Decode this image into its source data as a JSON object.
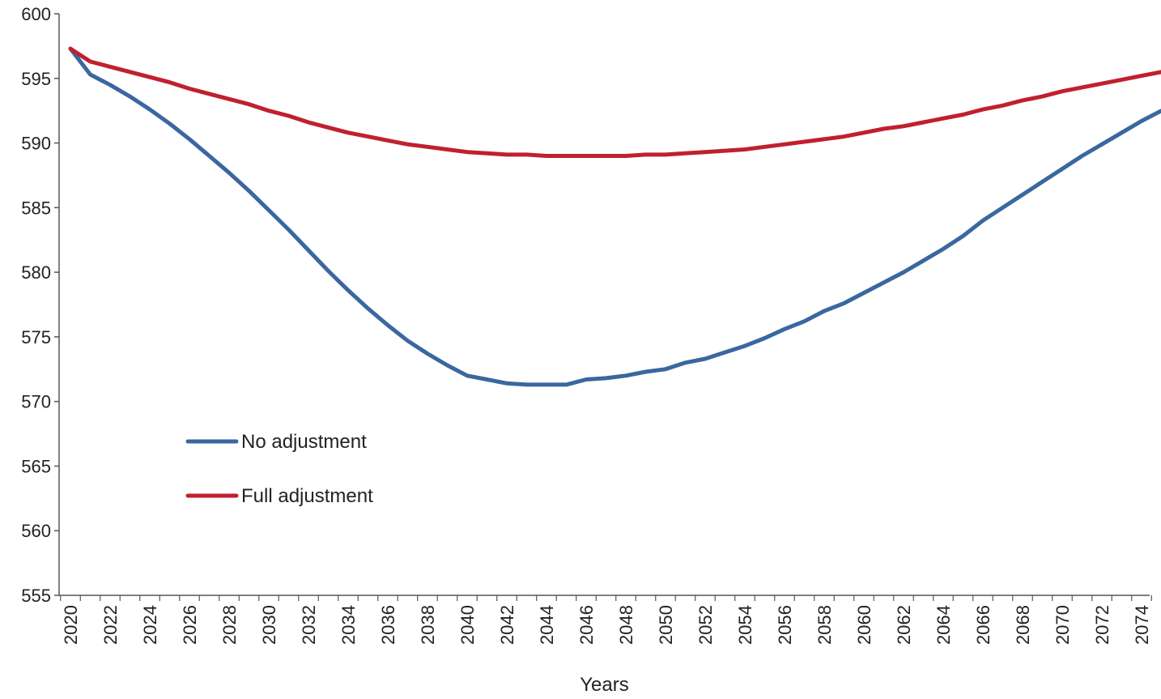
{
  "chart_data": {
    "type": "line",
    "title": "",
    "xlabel": "Years",
    "ylabel": "",
    "ylim": [
      555,
      600
    ],
    "y_ticks": [
      555,
      560,
      565,
      570,
      575,
      580,
      585,
      590,
      595,
      600
    ],
    "x_range": [
      2020,
      2075
    ],
    "x_tick_labels": [
      "2020",
      "2022",
      "2024",
      "2026",
      "2028",
      "2030",
      "2032",
      "2034",
      "2036",
      "2038",
      "2040",
      "2042",
      "2044",
      "2046",
      "2048",
      "2050",
      "2052",
      "2054",
      "2056",
      "2058",
      "2060",
      "2062",
      "2064",
      "2066",
      "2068",
      "2070",
      "2072",
      "2074"
    ],
    "grid": false,
    "legend_position": "lower-left",
    "x": [
      2020,
      2021,
      2022,
      2023,
      2024,
      2025,
      2026,
      2027,
      2028,
      2029,
      2030,
      2031,
      2032,
      2033,
      2034,
      2035,
      2036,
      2037,
      2038,
      2039,
      2040,
      2041,
      2042,
      2043,
      2044,
      2045,
      2046,
      2047,
      2048,
      2049,
      2050,
      2051,
      2052,
      2053,
      2054,
      2055,
      2056,
      2057,
      2058,
      2059,
      2060,
      2061,
      2062,
      2063,
      2064,
      2065,
      2066,
      2067,
      2068,
      2069,
      2070,
      2071,
      2072,
      2073,
      2074,
      2075
    ],
    "series": [
      {
        "name": "No adjustment",
        "color": "#3a67a0",
        "values": [
          597.3,
          595.3,
          594.5,
          593.6,
          592.6,
          591.5,
          590.3,
          589.0,
          587.7,
          586.3,
          584.8,
          583.3,
          581.7,
          580.1,
          578.6,
          577.2,
          575.9,
          574.7,
          573.7,
          572.8,
          572.0,
          571.7,
          571.4,
          571.3,
          571.3,
          571.3,
          571.7,
          571.8,
          572.0,
          572.3,
          572.5,
          573.0,
          573.3,
          573.8,
          574.3,
          574.9,
          575.6,
          576.2,
          577.0,
          577.6,
          578.4,
          579.2,
          580.0,
          580.9,
          581.8,
          582.8,
          584.0,
          585.0,
          586.0,
          587.0,
          588.0,
          589.0,
          589.9,
          590.8,
          591.7,
          592.5
        ],
        "label": "No adjustment"
      },
      {
        "name": "Full adjustment",
        "color": "#c0202e",
        "values": [
          597.3,
          596.3,
          595.9,
          595.5,
          595.1,
          594.7,
          594.2,
          593.8,
          593.4,
          593.0,
          592.5,
          592.1,
          591.6,
          591.2,
          590.8,
          590.5,
          590.2,
          589.9,
          589.7,
          589.5,
          589.3,
          589.2,
          589.1,
          589.1,
          589.0,
          589.0,
          589.0,
          589.0,
          589.0,
          589.1,
          589.1,
          589.2,
          589.3,
          589.4,
          589.5,
          589.7,
          589.9,
          590.1,
          590.3,
          590.5,
          590.8,
          591.1,
          591.3,
          591.6,
          591.9,
          592.2,
          592.6,
          592.9,
          593.3,
          593.6,
          594.0,
          594.3,
          594.6,
          594.9,
          595.2,
          595.5
        ],
        "label": "Full adjustment"
      }
    ]
  }
}
